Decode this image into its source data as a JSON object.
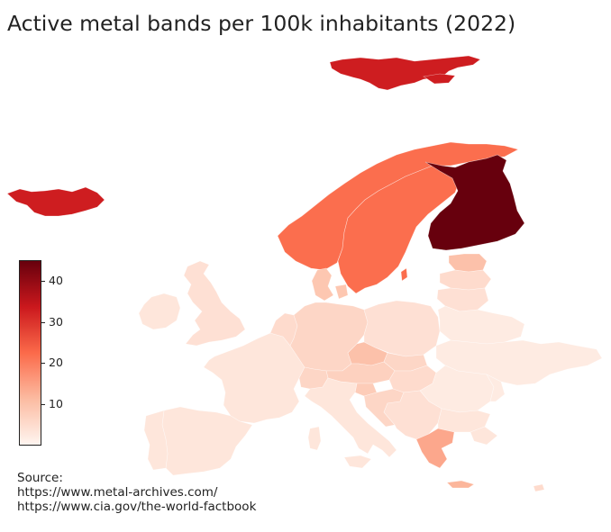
{
  "title": "Active metal bands per 100k inhabitants (2022)",
  "legend": {
    "ticks": [
      "10",
      "20",
      "30",
      "40"
    ],
    "tick_values": [
      10,
      20,
      30,
      40
    ],
    "range": [
      0,
      45
    ],
    "colors": [
      "#fff5f0",
      "#fcbba1",
      "#fb6a4a",
      "#cb181d",
      "#67000d"
    ]
  },
  "source": {
    "label": "Source:",
    "lines": [
      "https://www.metal-archives.com/",
      "https://www.cia.gov/the-world-factbook"
    ]
  },
  "regions": {
    "svalbard": 33,
    "iceland": 33,
    "norway": 22,
    "sweden": 22,
    "finland": 45,
    "estonia": 10,
    "latvia": 5,
    "lithuania": 4,
    "denmark": 9,
    "uk": 4,
    "ireland": 3,
    "france": 3,
    "benelux": 5,
    "germany": 6,
    "poland": 4,
    "belarus": 2,
    "ukraine": 2,
    "czechia": 10,
    "austria": 7,
    "switzerland": 6,
    "slovakia": 6,
    "hungary": 5,
    "slovenia": 8,
    "croatia": 6,
    "balkans": 4,
    "romania": 2,
    "moldova": 2,
    "bulgaria": 3,
    "italy": 3,
    "sardinia": 3,
    "spain": 3,
    "portugal": 3,
    "greece": 14,
    "crete": 12,
    "cyprus": 5,
    "gotland": 22
  }
}
